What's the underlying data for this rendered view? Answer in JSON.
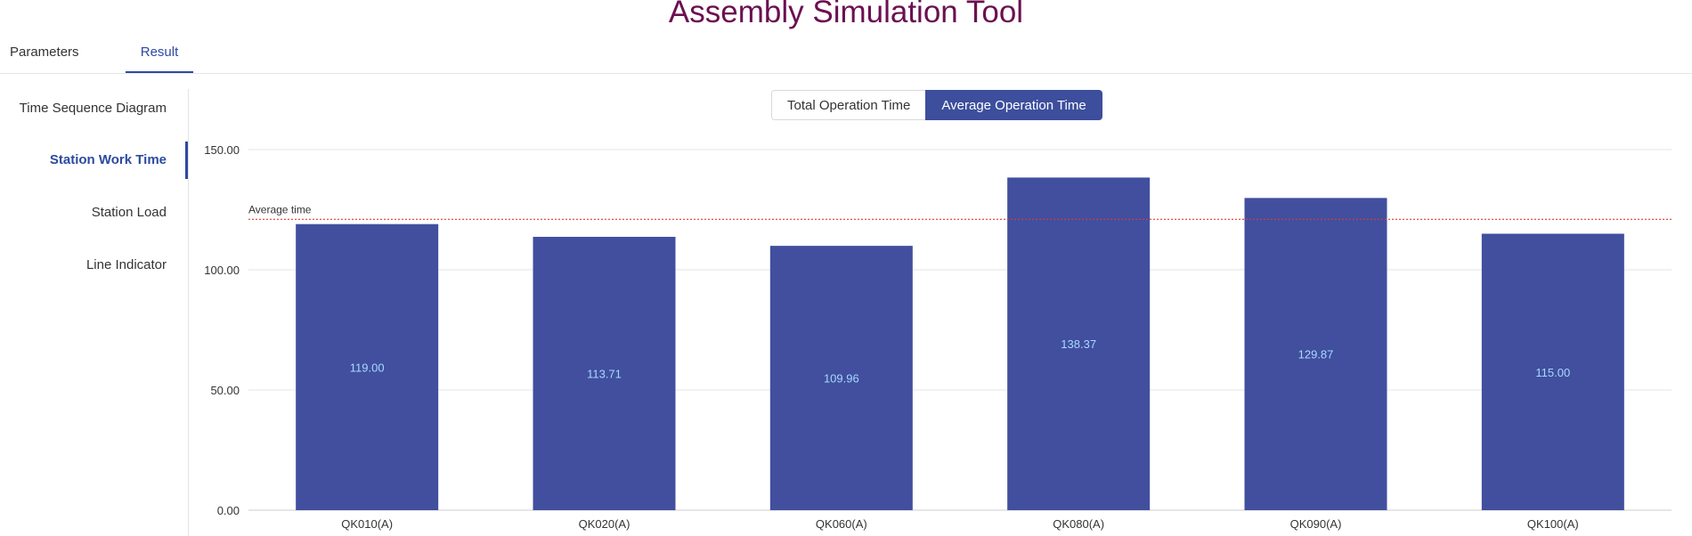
{
  "app": {
    "title": "Assembly Simulation Tool"
  },
  "tabs": [
    {
      "label": "Parameters",
      "active": false
    },
    {
      "label": "Result",
      "active": true
    }
  ],
  "side_menu": {
    "items": [
      {
        "label": "Time Sequence Diagram",
        "active": false
      },
      {
        "label": "Station Work Time",
        "active": true
      },
      {
        "label": "Station Load",
        "active": false
      },
      {
        "label": "Line Indicator",
        "active": false
      }
    ]
  },
  "toggle": {
    "options": [
      "Total Operation Time",
      "Average Operation Time"
    ],
    "selected": "Average Operation Time"
  },
  "colors": {
    "bar": "#414f9e",
    "accent": "#2c4aa0",
    "avg_line": "#e03a3a",
    "title": "#6b1051"
  },
  "chart_data": {
    "type": "bar",
    "title": "",
    "categories": [
      "QK010(A)",
      "QK020(A)",
      "QK060(A)",
      "QK080(A)",
      "QK090(A)",
      "QK100(A)"
    ],
    "values": [
      119.0,
      113.71,
      109.96,
      138.37,
      129.87,
      115.0
    ],
    "value_labels": [
      "119.00",
      "113.71",
      "109.96",
      "138.37",
      "129.87",
      "115.00"
    ],
    "ylim": [
      0,
      150
    ],
    "yticks": [
      0,
      50,
      100,
      150
    ],
    "ytick_labels": [
      "0.00",
      "50.00",
      "100.00",
      "150.00"
    ],
    "grid": true,
    "reference_line": {
      "label": "Average time",
      "value": 120.99
    }
  }
}
